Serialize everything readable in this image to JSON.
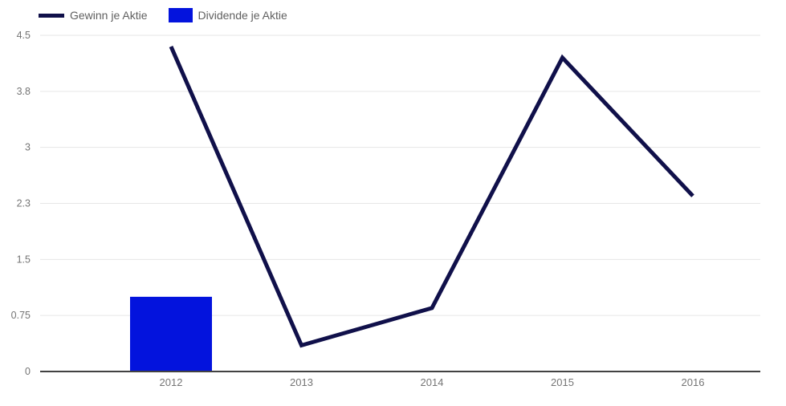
{
  "page": {
    "background": "#ffffff"
  },
  "legend": {
    "position": "top-left",
    "items": [
      {
        "label": "Gewinn je Aktie",
        "swatch": "line",
        "color": "#10104a"
      },
      {
        "label": "Dividende je Aktie",
        "swatch": "bar",
        "color": "#0313dd"
      }
    ]
  },
  "chart_data": {
    "type": "combo",
    "categories": [
      "2012",
      "2013",
      "2014",
      "2015",
      "2016"
    ],
    "series": [
      {
        "name": "Gewinn je Aktie",
        "type": "line",
        "color": "#10104a",
        "values": [
          4.35,
          0.35,
          0.85,
          4.2,
          2.35
        ]
      },
      {
        "name": "Dividende je Aktie",
        "type": "bar",
        "color": "#0313dd",
        "values": [
          1.0,
          null,
          null,
          null,
          null
        ]
      }
    ],
    "xlabel": "",
    "ylabel": "",
    "y_axis": {
      "min": 0,
      "max": 4.5,
      "ticks": [
        {
          "label": "0",
          "value": 0
        },
        {
          "label": "0.75",
          "value": 0.75
        },
        {
          "label": "1.5",
          "value": 1.5
        },
        {
          "label": "2.3",
          "value": 2.25
        },
        {
          "label": "3",
          "value": 3
        },
        {
          "label": "3.8",
          "value": 3.75
        },
        {
          "label": "4.5",
          "value": 4.5
        }
      ]
    },
    "grid": true,
    "legend_position": "top-left",
    "colors": {
      "gridline": "#e6e6e6",
      "axis_line": "#424242",
      "tick_label": "#757575"
    }
  }
}
